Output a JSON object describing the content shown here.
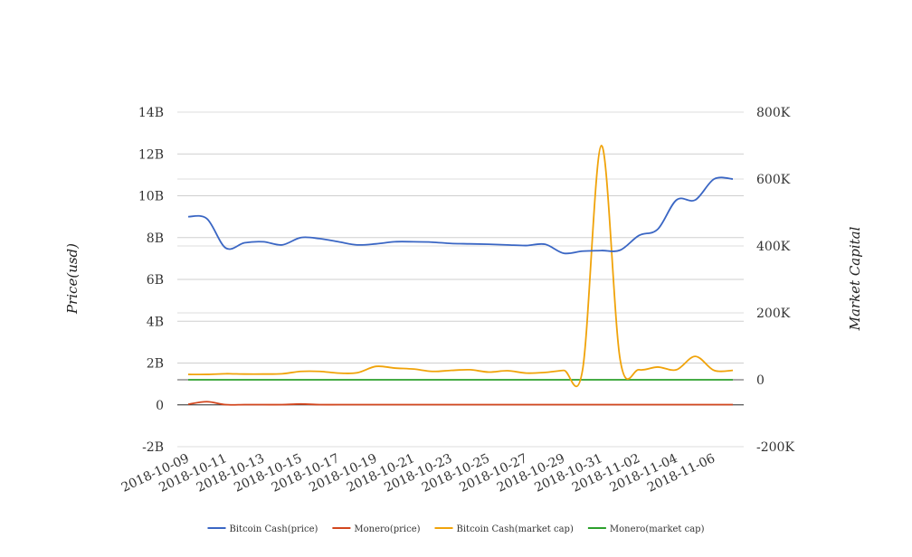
{
  "chart_data": {
    "type": "line",
    "dates": [
      "2018-10-09",
      "2018-10-10",
      "2018-10-11",
      "2018-10-12",
      "2018-10-13",
      "2018-10-14",
      "2018-10-15",
      "2018-10-16",
      "2018-10-17",
      "2018-10-18",
      "2018-10-19",
      "2018-10-20",
      "2018-10-21",
      "2018-10-22",
      "2018-10-23",
      "2018-10-24",
      "2018-10-25",
      "2018-10-26",
      "2018-10-27",
      "2018-10-28",
      "2018-10-29",
      "2018-10-30",
      "2018-10-31",
      "2018-11-01",
      "2018-11-02",
      "2018-11-03",
      "2018-11-04",
      "2018-11-05",
      "2018-11-06",
      "2018-11-07"
    ],
    "x_tick_labels": [
      "2018-10-09",
      "2018-10-11",
      "2018-10-13",
      "2018-10-15",
      "2018-10-17",
      "2018-10-19",
      "2018-10-21",
      "2018-10-23",
      "2018-10-25",
      "2018-10-27",
      "2018-10-29",
      "2018-10-31",
      "2018-11-02",
      "2018-11-04",
      "2018-11-06"
    ],
    "y_left": {
      "label": "Price(usd)",
      "range": [
        -2000000000,
        14000000000
      ],
      "ticks": [
        -2000000000,
        0,
        2000000000,
        4000000000,
        6000000000,
        8000000000,
        10000000000,
        12000000000,
        14000000000
      ],
      "tick_labels": [
        "-2B",
        "0",
        "2B",
        "4B",
        "6B",
        "8B",
        "10B",
        "12B",
        "14B"
      ]
    },
    "y_right": {
      "label": "Market Capital",
      "range": [
        -200000,
        800000
      ],
      "ticks": [
        -200000,
        0,
        200000,
        400000,
        600000,
        800000
      ],
      "tick_labels": [
        "-200K",
        "0",
        "200K",
        "400K",
        "600K",
        "800K"
      ]
    },
    "grid": true,
    "legend_position": "bottom",
    "series": [
      {
        "name": "Bitcoin Cash(price)",
        "axis": "left",
        "color": "#3a66c4",
        "values": [
          9000000000,
          8900000000,
          7500000000,
          7750000000,
          7800000000,
          7650000000,
          8000000000,
          7950000000,
          7800000000,
          7650000000,
          7700000000,
          7800000000,
          7800000000,
          7780000000,
          7720000000,
          7700000000,
          7680000000,
          7650000000,
          7620000000,
          7680000000,
          7250000000,
          7350000000,
          7380000000,
          7400000000,
          8100000000,
          8400000000,
          9800000000,
          9800000000,
          10800000000,
          10800000000
        ]
      },
      {
        "name": "Monero(price)",
        "axis": "left",
        "color": "#d2461e",
        "values": [
          30000000,
          150000000,
          10000000,
          10000000,
          10000000,
          10000000,
          40000000,
          10000000,
          10000000,
          10000000,
          10000000,
          10000000,
          10000000,
          10000000,
          10000000,
          10000000,
          10000000,
          10000000,
          10000000,
          10000000,
          10000000,
          10000000,
          10000000,
          10000000,
          10000000,
          10000000,
          10000000,
          10000000,
          10000000,
          10000000
        ]
      },
      {
        "name": "Bitcoin Cash(market cap)",
        "axis": "right",
        "color": "#f0a30a",
        "values": [
          16000,
          16000,
          18000,
          17000,
          17000,
          18000,
          25000,
          25000,
          20000,
          21000,
          40000,
          35000,
          32000,
          25000,
          28000,
          30000,
          23000,
          27000,
          20000,
          22000,
          28000,
          30000,
          700000,
          60000,
          30000,
          38000,
          30000,
          70000,
          28000,
          28000
        ]
      },
      {
        "name": "Monero(market cap)",
        "axis": "right",
        "color": "#2ca02c",
        "values": [
          0,
          0,
          0,
          0,
          0,
          0,
          0,
          0,
          0,
          0,
          0,
          0,
          0,
          0,
          0,
          0,
          0,
          0,
          0,
          0,
          0,
          0,
          0,
          0,
          0,
          0,
          0,
          0,
          0,
          0
        ]
      }
    ]
  }
}
